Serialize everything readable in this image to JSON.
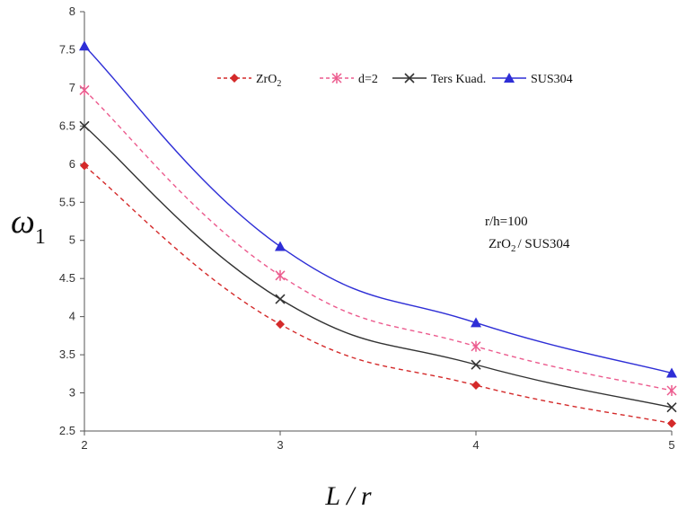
{
  "chart_data": {
    "type": "line",
    "xlabel": "L / r",
    "ylabel": "ω",
    "ylabel_sub": "1",
    "xlim": [
      2,
      5
    ],
    "ylim": [
      2.5,
      8
    ],
    "x_ticks": [
      "2",
      "3",
      "4",
      "5"
    ],
    "y_ticks": [
      "2.5",
      "3",
      "3.5",
      "4",
      "4.5",
      "5",
      "5.5",
      "6",
      "6.5",
      "7",
      "7.5",
      "8"
    ],
    "grid": false,
    "legend_position": "top",
    "x": [
      2,
      3,
      4,
      5
    ],
    "series": [
      {
        "name": "ZrO",
        "name_sub": "2",
        "color": "#d42a2a",
        "marker": "diamond",
        "dashed": true,
        "values": [
          5.98,
          3.9,
          3.1,
          2.6
        ]
      },
      {
        "name": "d=2",
        "color": "#ec5b8e",
        "marker": "asterisk",
        "dashed": true,
        "values": [
          6.97,
          4.54,
          3.61,
          3.03
        ]
      },
      {
        "name": "Ters Kuad.",
        "color": "#333333",
        "marker": "cross",
        "dashed": false,
        "values": [
          6.5,
          4.23,
          3.37,
          2.81
        ]
      },
      {
        "name": "SUS304",
        "color": "#2e2ed6",
        "marker": "triangle",
        "dashed": false,
        "values": [
          7.55,
          4.92,
          3.92,
          3.26
        ]
      }
    ],
    "annotations": {
      "line1": "r/h=100",
      "line2_a": "ZrO",
      "line2_sub": "2",
      "line2_b": "/ SUS304"
    }
  }
}
